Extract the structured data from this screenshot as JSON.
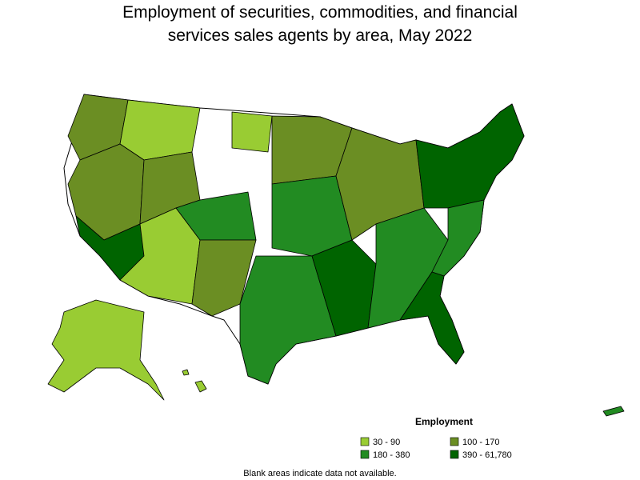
{
  "title_lines": [
    "Employment of securities, commodities, and financial",
    "services sales agents by area, May 2022"
  ],
  "legend": {
    "title": "Employment",
    "items": [
      {
        "label": "30 - 90",
        "color": "#99cc33"
      },
      {
        "label": "100 - 170",
        "color": "#6b8e23"
      },
      {
        "label": "180 - 380",
        "color": "#228b22"
      },
      {
        "label": "390 - 61,780",
        "color": "#006400"
      }
    ]
  },
  "note": "Blank areas indicate data not available."
}
